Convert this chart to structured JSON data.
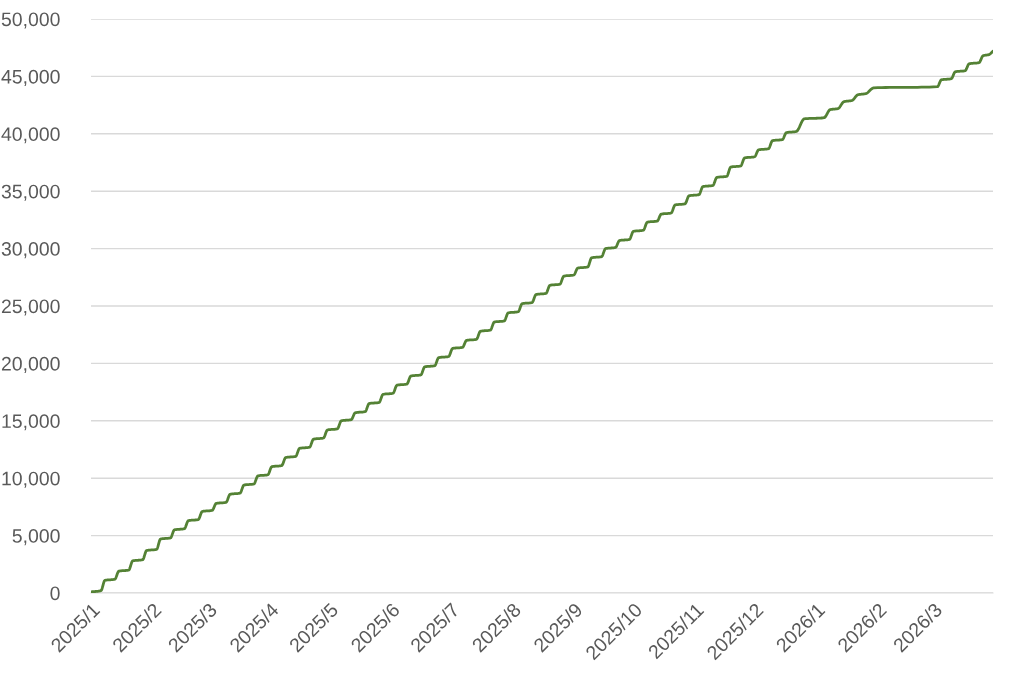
{
  "chart_data": {
    "type": "line",
    "x": [
      "2025-01-01",
      "2025-01-06",
      "2025-01-08",
      "2025-01-13",
      "2025-01-15",
      "2025-01-20",
      "2025-01-22",
      "2025-01-27",
      "2025-01-29",
      "2025-02-03",
      "2025-02-05",
      "2025-02-10",
      "2025-02-12",
      "2025-02-17",
      "2025-02-19",
      "2025-02-24",
      "2025-02-26",
      "2025-03-03",
      "2025-03-05",
      "2025-03-10",
      "2025-03-12",
      "2025-03-17",
      "2025-03-19",
      "2025-03-24",
      "2025-03-26",
      "2025-03-31",
      "2025-04-02",
      "2025-04-07",
      "2025-04-09",
      "2025-04-14",
      "2025-04-16",
      "2025-04-21",
      "2025-04-23",
      "2025-04-28",
      "2025-04-30",
      "2025-05-05",
      "2025-05-07",
      "2025-05-12",
      "2025-05-14",
      "2025-05-19",
      "2025-05-21",
      "2025-05-26",
      "2025-05-28",
      "2025-06-02",
      "2025-06-04",
      "2025-06-09",
      "2025-06-11",
      "2025-06-16",
      "2025-06-18",
      "2025-06-23",
      "2025-06-25",
      "2025-06-30",
      "2025-07-02",
      "2025-07-07",
      "2025-07-09",
      "2025-07-14",
      "2025-07-16",
      "2025-07-21",
      "2025-07-23",
      "2025-07-28",
      "2025-07-30",
      "2025-08-04",
      "2025-08-06",
      "2025-08-11",
      "2025-08-13",
      "2025-08-18",
      "2025-08-20",
      "2025-08-25",
      "2025-08-27",
      "2025-09-01",
      "2025-09-03",
      "2025-09-08",
      "2025-09-10",
      "2025-09-15",
      "2025-09-17",
      "2025-09-22",
      "2025-09-24",
      "2025-09-29",
      "2025-10-01",
      "2025-10-06",
      "2025-10-08",
      "2025-10-13",
      "2025-10-15",
      "2025-10-20",
      "2025-10-22",
      "2025-10-27",
      "2025-10-29",
      "2025-11-03",
      "2025-11-05",
      "2025-11-10",
      "2025-11-12",
      "2025-11-17",
      "2025-11-19",
      "2025-11-24",
      "2025-11-26",
      "2025-12-01",
      "2025-12-03",
      "2025-12-08",
      "2025-12-10",
      "2025-12-15",
      "2025-12-17",
      "2025-12-22",
      "2025-12-26",
      "2026-01-05",
      "2026-01-08",
      "2026-01-12",
      "2026-01-15",
      "2026-01-19",
      "2026-01-22",
      "2026-01-26",
      "2026-01-30",
      "2026-03-03",
      "2026-03-05",
      "2026-03-10",
      "2026-03-12",
      "2026-03-17",
      "2026-03-19",
      "2026-03-24",
      "2026-03-26",
      "2026-03-29",
      "2026-03-31"
    ],
    "series": [
      {
        "color": "#548235",
        "values": [
          100,
          200,
          1100,
          1200,
          1900,
          2000,
          2800,
          2900,
          3700,
          3800,
          4700,
          4800,
          5500,
          5600,
          6300,
          6400,
          7100,
          7200,
          7800,
          7900,
          8600,
          8700,
          9400,
          9500,
          10200,
          10300,
          11000,
          11100,
          11800,
          11900,
          12600,
          12700,
          13400,
          13500,
          14200,
          14300,
          15000,
          15100,
          15700,
          15800,
          16500,
          16600,
          17300,
          17400,
          18100,
          18200,
          18900,
          19000,
          19700,
          19800,
          20500,
          20600,
          21300,
          21400,
          22000,
          22100,
          22800,
          22900,
          23600,
          23700,
          24400,
          24500,
          25200,
          25300,
          26000,
          26100,
          26800,
          26900,
          27600,
          27700,
          28300,
          28400,
          29200,
          29300,
          30000,
          30100,
          30700,
          30800,
          31500,
          31600,
          32300,
          32400,
          33000,
          33100,
          33800,
          33900,
          34600,
          34700,
          35400,
          35500,
          36200,
          36300,
          37100,
          37200,
          37900,
          38000,
          38600,
          38700,
          39400,
          39500,
          40100,
          40200,
          41300,
          41400,
          42100,
          42200,
          42800,
          42900,
          43400,
          43500,
          44000,
          44100,
          44700,
          44800,
          45400,
          45500,
          46100,
          46200,
          46800,
          46900,
          47200
        ]
      }
    ],
    "xlim": [
      "2025-01-01",
      "2026-03-31"
    ],
    "xticks": [
      {
        "value": "2025-01-01",
        "label": "2025/1"
      },
      {
        "value": "2025-02-01",
        "label": "2025/2"
      },
      {
        "value": "2025-03-01",
        "label": "2025/3"
      },
      {
        "value": "2025-04-01",
        "label": "2025/4"
      },
      {
        "value": "2025-05-01",
        "label": "2025/5"
      },
      {
        "value": "2025-06-01",
        "label": "2025/6"
      },
      {
        "value": "2025-07-01",
        "label": "2025/7"
      },
      {
        "value": "2025-08-01",
        "label": "2025/8"
      },
      {
        "value": "2025-09-01",
        "label": "2025/9"
      },
      {
        "value": "2025-10-01",
        "label": "2025/10"
      },
      {
        "value": "2025-11-01",
        "label": "2025/11"
      },
      {
        "value": "2025-12-01",
        "label": "2025/12"
      },
      {
        "value": "2026-01-01",
        "label": "2026/1"
      },
      {
        "value": "2026-02-01",
        "label": "2026/2"
      },
      {
        "value": "2026-03-01",
        "label": "2026/3"
      }
    ],
    "ylim": [
      0,
      50000
    ],
    "yticks": [
      0,
      {
        "value": 5000,
        "label": "5,000"
      },
      {
        "value": 10000,
        "label": "10,000"
      },
      {
        "value": 15000,
        "label": "15,000"
      },
      {
        "value": 20000,
        "label": "20,000"
      },
      {
        "value": 25000,
        "label": "25,000"
      },
      {
        "value": 30000,
        "label": "30,000"
      },
      {
        "value": 35000,
        "label": "35,000"
      },
      {
        "value": 40000,
        "label": "40,000"
      },
      {
        "value": 45000,
        "label": "45,000"
      },
      {
        "value": 50000,
        "label": "50,000"
      }
    ],
    "grid": "y"
  }
}
